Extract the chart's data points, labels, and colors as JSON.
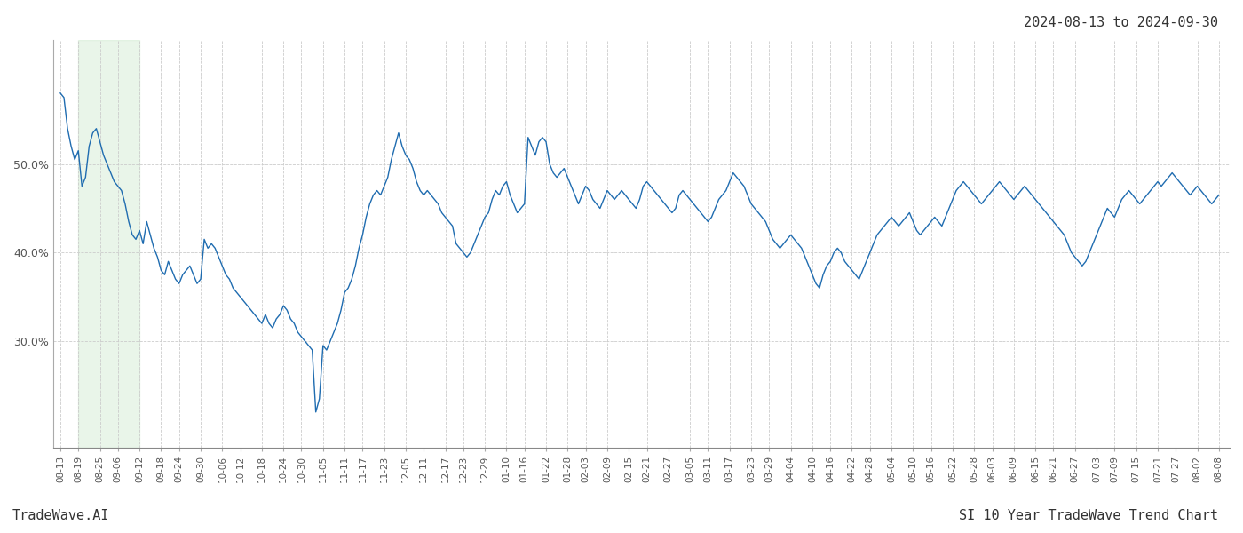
{
  "title_top_right": "2024-08-13 to 2024-09-30",
  "label_bottom_left": "TradeWave.AI",
  "label_bottom_right": "SI 10 Year TradeWave Trend Chart",
  "line_color": "#1f6cb0",
  "shaded_color": "#c8e6c9",
  "shaded_alpha": 0.4,
  "background_color": "#ffffff",
  "grid_color": "#cccccc",
  "ytick_values": [
    30.0,
    40.0,
    50.0
  ],
  "ylim": [
    18.0,
    64.0
  ],
  "font_size_tick": 9,
  "font_size_corner": 11,
  "x_labels": [
    "08-13",
    "08-19",
    "08-25",
    "09-06",
    "09-12",
    "09-18",
    "09-24",
    "09-30",
    "10-06",
    "10-12",
    "10-18",
    "10-24",
    "10-30",
    "11-05",
    "11-11",
    "11-17",
    "11-23",
    "12-05",
    "12-11",
    "12-17",
    "12-23",
    "12-29",
    "01-10",
    "01-16",
    "01-22",
    "01-28",
    "02-03",
    "02-09",
    "02-15",
    "02-21",
    "02-27",
    "03-05",
    "03-11",
    "03-17",
    "03-23",
    "03-29",
    "04-04",
    "04-10",
    "04-16",
    "04-22",
    "04-28",
    "05-04",
    "05-10",
    "05-16",
    "05-22",
    "05-28",
    "06-03",
    "06-09",
    "06-15",
    "06-21",
    "06-27",
    "07-03",
    "07-09",
    "07-15",
    "07-21",
    "07-27",
    "08-02",
    "08-08"
  ],
  "shaded_start_label": "08-19",
  "shaded_end_label": "09-12",
  "y_values": [
    58.0,
    57.5,
    54.0,
    52.0,
    50.5,
    51.5,
    47.5,
    48.5,
    52.0,
    53.5,
    54.0,
    52.5,
    51.0,
    50.0,
    49.0,
    48.0,
    47.5,
    47.0,
    45.5,
    43.5,
    42.0,
    41.5,
    42.5,
    41.0,
    43.5,
    42.0,
    40.5,
    39.5,
    38.0,
    37.5,
    39.0,
    38.0,
    37.0,
    36.5,
    37.5,
    38.0,
    38.5,
    37.5,
    36.5,
    37.0,
    41.5,
    40.5,
    41.0,
    40.5,
    39.5,
    38.5,
    37.5,
    37.0,
    36.0,
    35.5,
    35.0,
    34.5,
    34.0,
    33.5,
    33.0,
    32.5,
    32.0,
    33.0,
    32.0,
    31.5,
    32.5,
    33.0,
    34.0,
    33.5,
    32.5,
    32.0,
    31.0,
    30.5,
    30.0,
    29.5,
    29.0,
    22.0,
    23.5,
    29.5,
    29.0,
    30.0,
    31.0,
    32.0,
    33.5,
    35.5,
    36.0,
    37.0,
    38.5,
    40.5,
    42.0,
    44.0,
    45.5,
    46.5,
    47.0,
    46.5,
    47.5,
    48.5,
    50.5,
    52.0,
    53.5,
    52.0,
    51.0,
    50.5,
    49.5,
    48.0,
    47.0,
    46.5,
    47.0,
    46.5,
    46.0,
    45.5,
    44.5,
    44.0,
    43.5,
    43.0,
    41.0,
    40.5,
    40.0,
    39.5,
    40.0,
    41.0,
    42.0,
    43.0,
    44.0,
    44.5,
    46.0,
    47.0,
    46.5,
    47.5,
    48.0,
    46.5,
    45.5,
    44.5,
    45.0,
    45.5,
    53.0,
    52.0,
    51.0,
    52.5,
    53.0,
    52.5,
    50.0,
    49.0,
    48.5,
    49.0,
    49.5,
    48.5,
    47.5,
    46.5,
    45.5,
    46.5,
    47.5,
    47.0,
    46.0,
    45.5,
    45.0,
    46.0,
    47.0,
    46.5,
    46.0,
    46.5,
    47.0,
    46.5,
    46.0,
    45.5,
    45.0,
    46.0,
    47.5,
    48.0,
    47.5,
    47.0,
    46.5,
    46.0,
    45.5,
    45.0,
    44.5,
    45.0,
    46.5,
    47.0,
    46.5,
    46.0,
    45.5,
    45.0,
    44.5,
    44.0,
    43.5,
    44.0,
    45.0,
    46.0,
    46.5,
    47.0,
    48.0,
    49.0,
    48.5,
    48.0,
    47.5,
    46.5,
    45.5,
    45.0,
    44.5,
    44.0,
    43.5,
    42.5,
    41.5,
    41.0,
    40.5,
    41.0,
    41.5,
    42.0,
    41.5,
    41.0,
    40.5,
    39.5,
    38.5,
    37.5,
    36.5,
    36.0,
    37.5,
    38.5,
    39.0,
    40.0,
    40.5,
    40.0,
    39.0,
    38.5,
    38.0,
    37.5,
    37.0,
    38.0,
    39.0,
    40.0,
    41.0,
    42.0,
    42.5,
    43.0,
    43.5,
    44.0,
    43.5,
    43.0,
    43.5,
    44.0,
    44.5,
    43.5,
    42.5,
    42.0,
    42.5,
    43.0,
    43.5,
    44.0,
    43.5,
    43.0,
    44.0,
    45.0,
    46.0,
    47.0,
    47.5,
    48.0,
    47.5,
    47.0,
    46.5,
    46.0,
    45.5,
    46.0,
    46.5,
    47.0,
    47.5,
    48.0,
    47.5,
    47.0,
    46.5,
    46.0,
    46.5,
    47.0,
    47.5,
    47.0,
    46.5,
    46.0,
    45.5,
    45.0,
    44.5,
    44.0,
    43.5,
    43.0,
    42.5,
    42.0,
    41.0,
    40.0,
    39.5,
    39.0,
    38.5,
    39.0,
    40.0,
    41.0,
    42.0,
    43.0,
    44.0,
    45.0,
    44.5,
    44.0,
    45.0,
    46.0,
    46.5,
    47.0,
    46.5,
    46.0,
    45.5,
    46.0,
    46.5,
    47.0,
    47.5,
    48.0,
    47.5,
    48.0,
    48.5,
    49.0,
    48.5,
    48.0,
    47.5,
    47.0,
    46.5,
    47.0,
    47.5,
    47.0,
    46.5,
    46.0,
    45.5,
    46.0,
    46.5
  ]
}
